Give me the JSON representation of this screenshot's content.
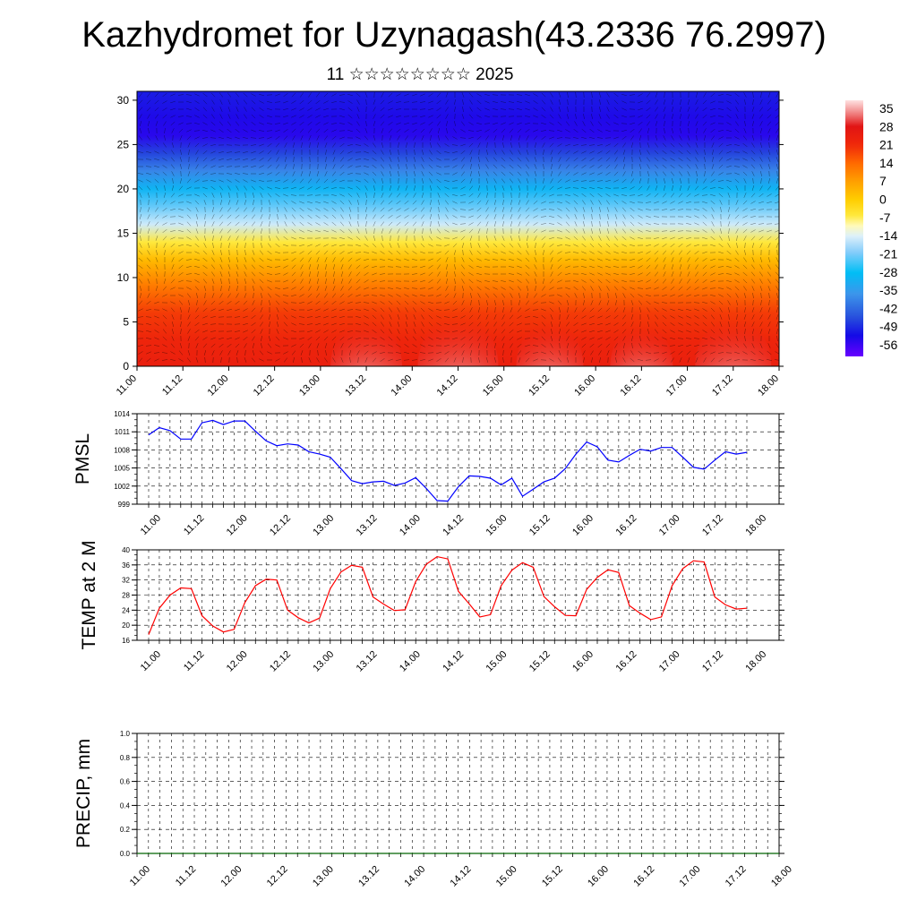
{
  "title": "Kazhydromet for Uzynagash(43.2336 76.2997)",
  "subtitle": "11 ☆☆☆☆☆☆☆☆ 2025",
  "chart_data": [
    {
      "type": "heatmap",
      "title": "Kazhydromet for Uzynagash(43.2336 76.2997)",
      "subtitle": "11 ☆☆☆☆☆☆☆☆ 2025",
      "x_ticks": [
        "11.00",
        "11.12",
        "12.00",
        "12.12",
        "13.00",
        "13.12",
        "14.00",
        "14.12",
        "15.00",
        "15.12",
        "16.00",
        "16.12",
        "17.00",
        "17.12",
        "18.00"
      ],
      "y_ticks": [
        0,
        5,
        10,
        15,
        20,
        25,
        30
      ],
      "ylim": [
        0,
        31
      ],
      "colorbar": {
        "labels": [
          35,
          28,
          21,
          14,
          7,
          0,
          -7,
          -14,
          -21,
          -28,
          -35,
          -42,
          -49,
          -56
        ],
        "range": [
          -60,
          38
        ]
      },
      "temperature_profile_by_level": [
        {
          "level": 0,
          "value": 24
        },
        {
          "level": 3,
          "value": 22
        },
        {
          "level": 6,
          "value": 19
        },
        {
          "level": 9,
          "value": 12
        },
        {
          "level": 12,
          "value": 3
        },
        {
          "level": 14,
          "value": -6
        },
        {
          "level": 16,
          "value": -15
        },
        {
          "level": 18,
          "value": -22
        },
        {
          "level": 20,
          "value": -30
        },
        {
          "level": 22,
          "value": -38
        },
        {
          "level": 24,
          "value": -46
        },
        {
          "level": 26,
          "value": -54
        },
        {
          "level": 28,
          "value": -53
        },
        {
          "level": 31,
          "value": -50
        }
      ],
      "surface_warm_maxima": [
        {
          "x": "13.12",
          "value": 34
        },
        {
          "x": "14.12",
          "value": 36
        },
        {
          "x": "15.12",
          "value": 33
        },
        {
          "x": "16.12",
          "value": 32
        },
        {
          "x": "17.12",
          "value": 35
        }
      ],
      "overlay": "wind vectors",
      "grid": false
    },
    {
      "type": "line",
      "ylabel": "PMSL",
      "x_ticks": [
        "11.00",
        "11.12",
        "12.00",
        "12.12",
        "13.00",
        "13.12",
        "14.00",
        "14.12",
        "15.00",
        "15.12",
        "16.00",
        "16.12",
        "17.00",
        "17.12",
        "18.00"
      ],
      "y_ticks": [
        999,
        1002,
        1005,
        1008,
        1011,
        1014
      ],
      "ylim": [
        999,
        1014
      ],
      "grid": true,
      "series": [
        {
          "color": "#0000ff",
          "values": [
            1010.5,
            1011.7,
            1011.2,
            1009.8,
            1009.8,
            1012.5,
            1012.9,
            1012.2,
            1012.8,
            1012.8,
            1011.1,
            1009.5,
            1008.7,
            1009.0,
            1008.8,
            1007.7,
            1007.3,
            1006.8,
            1004.9,
            1002.9,
            1002.4,
            1002.7,
            1002.8,
            1002.1,
            1002.5,
            1003.4,
            1001.6,
            999.6,
            999.5,
            1001.9,
            1003.7,
            1003.6,
            1003.3,
            1002.2,
            1003.3,
            1000.3,
            1001.5,
            1002.7,
            1003.3,
            1004.9,
            1007.3,
            1009.3,
            1008.5,
            1006.3,
            1006.0,
            1007.1,
            1008.1,
            1007.8,
            1008.4,
            1008.4,
            1006.8,
            1005.1,
            1004.8,
            1006.3,
            1007.7,
            1007.3,
            1007.6
          ]
        }
      ]
    },
    {
      "type": "line",
      "ylabel": "TEMP at 2 M",
      "x_ticks": [
        "11.00",
        "11.12",
        "12.00",
        "12.12",
        "13.00",
        "13.12",
        "14.00",
        "14.12",
        "15.00",
        "15.12",
        "16.00",
        "16.12",
        "17.00",
        "17.12",
        "18.00"
      ],
      "y_ticks": [
        16,
        20,
        24,
        28,
        32,
        36,
        40
      ],
      "ylim": [
        16,
        40
      ],
      "grid": true,
      "series": [
        {
          "color": "#ff0000",
          "values": [
            17.5,
            24.5,
            28.0,
            29.9,
            29.7,
            22.5,
            19.8,
            18.2,
            18.9,
            26.0,
            30.5,
            32.2,
            32.0,
            24.0,
            22.0,
            20.6,
            21.9,
            29.7,
            34.1,
            35.9,
            35.4,
            27.5,
            25.6,
            23.9,
            24.1,
            31.6,
            36.2,
            38.2,
            37.6,
            29.0,
            25.7,
            22.2,
            22.8,
            30.5,
            34.6,
            36.6,
            35.4,
            27.6,
            24.9,
            22.6,
            22.5,
            29.5,
            32.7,
            34.7,
            34.0,
            25.2,
            23.2,
            21.5,
            22.2,
            30.5,
            35.0,
            37.1,
            36.8,
            27.5,
            25.4,
            24.3,
            24.5
          ]
        }
      ]
    },
    {
      "type": "line",
      "ylabel": "PRECIP, mm",
      "x_ticks": [
        "11.00",
        "11.12",
        "12.00",
        "12.12",
        "13.00",
        "13.12",
        "14.00",
        "14.12",
        "15.00",
        "15.12",
        "16.00",
        "16.12",
        "17.00",
        "17.12",
        "18.00"
      ],
      "y_ticks": [
        "0.0",
        "0.2",
        "0.4",
        "0.6",
        "0.8",
        "1.0"
      ],
      "ylim": [
        0,
        1
      ],
      "grid": true,
      "series": [
        {
          "color": "#006400",
          "values": [
            0,
            0,
            0,
            0,
            0,
            0,
            0,
            0,
            0,
            0,
            0,
            0,
            0,
            0,
            0,
            0,
            0,
            0,
            0,
            0,
            0,
            0,
            0,
            0,
            0,
            0,
            0,
            0,
            0,
            0,
            0,
            0,
            0,
            0,
            0,
            0,
            0,
            0,
            0,
            0,
            0,
            0,
            0,
            0,
            0,
            0,
            0,
            0,
            0,
            0,
            0,
            0,
            0,
            0,
            0,
            0,
            0
          ]
        }
      ]
    }
  ]
}
